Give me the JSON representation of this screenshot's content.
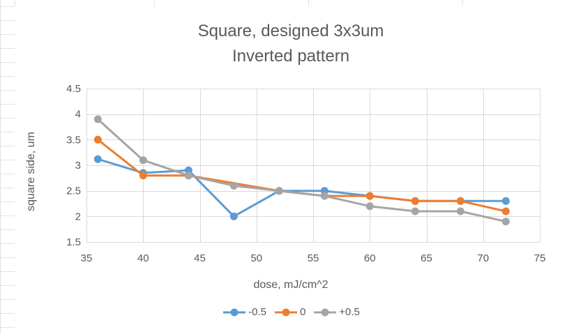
{
  "colors": {
    "series": [
      "#5B9BD5",
      "#ED7D31",
      "#A5A5A5"
    ],
    "grid": "#D9D9D9",
    "text": "#595959",
    "sheet_grid": "#E2E2E2"
  },
  "chart_data": {
    "type": "line",
    "title": "Square, designed 3x3um",
    "subtitle": "Inverted pattern",
    "xlabel": "dose, mJ/cm^2",
    "ylabel": "square side, um",
    "xlim": [
      35,
      75
    ],
    "ylim": [
      1.5,
      4.5
    ],
    "xticks": [
      "35",
      "40",
      "45",
      "50",
      "55",
      "60",
      "65",
      "70",
      "75"
    ],
    "yticks": [
      "1.5",
      "2",
      "2.5",
      "3",
      "3.5",
      "4",
      "4.5"
    ],
    "grid": true,
    "legend_position": "bottom",
    "x": [
      36,
      40,
      44,
      48,
      52,
      56,
      60,
      64,
      68,
      72
    ],
    "series": [
      {
        "name": "-0.5",
        "values": [
          3.12,
          2.85,
          2.9,
          2.0,
          2.5,
          2.5,
          2.4,
          2.3,
          2.3,
          2.3
        ]
      },
      {
        "name": "0",
        "values": [
          3.5,
          2.8,
          2.8,
          null,
          2.5,
          2.4,
          2.4,
          2.3,
          2.3,
          2.1
        ]
      },
      {
        "name": "+0.5",
        "values": [
          3.9,
          3.1,
          2.8,
          2.6,
          2.5,
          2.4,
          2.2,
          2.1,
          2.1,
          1.9
        ]
      }
    ]
  }
}
